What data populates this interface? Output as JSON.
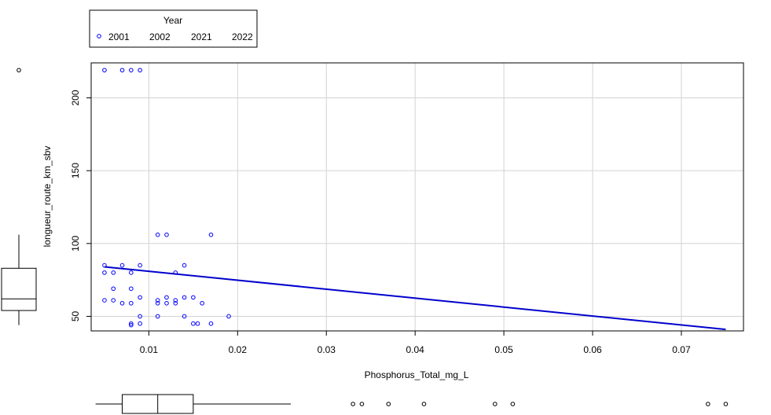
{
  "chart_data": {
    "type": "scatter",
    "xlabel": "Phosphorus_Total_mg_L",
    "ylabel": "longueur_route_km_sbv",
    "xlim": [
      0.0035,
      0.077
    ],
    "ylim": [
      40,
      224
    ],
    "x_ticks": [
      0.01,
      0.02,
      0.03,
      0.04,
      0.05,
      0.06,
      0.07
    ],
    "x_tick_labels": [
      "0.01",
      "0.02",
      "0.03",
      "0.04",
      "0.05",
      "0.06",
      "0.07"
    ],
    "y_ticks": [
      50,
      100,
      150,
      200
    ],
    "y_tick_labels": [
      "50",
      "100",
      "150",
      "200"
    ],
    "grid": true,
    "point_color": "#0000ff",
    "line_color": "#0000cd",
    "legend": {
      "title": "Year",
      "placement": "top-left",
      "entries": [
        "2001",
        "2002",
        "2021",
        "2022"
      ]
    },
    "series": [
      {
        "name": "2001",
        "points": [
          [
            0.005,
            219
          ],
          [
            0.007,
            219
          ],
          [
            0.008,
            219
          ],
          [
            0.009,
            219
          ],
          [
            0.005,
            85
          ],
          [
            0.007,
            85
          ],
          [
            0.009,
            85
          ],
          [
            0.014,
            85
          ],
          [
            0.005,
            80
          ],
          [
            0.006,
            80
          ],
          [
            0.008,
            80
          ],
          [
            0.013,
            80
          ],
          [
            0.006,
            69
          ],
          [
            0.008,
            69
          ],
          [
            0.009,
            63
          ],
          [
            0.012,
            63
          ],
          [
            0.014,
            63
          ],
          [
            0.015,
            63
          ],
          [
            0.005,
            61
          ],
          [
            0.006,
            61
          ],
          [
            0.011,
            61
          ],
          [
            0.013,
            61
          ],
          [
            0.007,
            59
          ],
          [
            0.008,
            59
          ],
          [
            0.011,
            59
          ],
          [
            0.012,
            59
          ],
          [
            0.013,
            59
          ],
          [
            0.016,
            59
          ],
          [
            0.009,
            50
          ],
          [
            0.011,
            50
          ],
          [
            0.014,
            50
          ],
          [
            0.019,
            50
          ],
          [
            0.008,
            45
          ],
          [
            0.008,
            44
          ],
          [
            0.009,
            45
          ],
          [
            0.015,
            45
          ],
          [
            0.0155,
            45
          ],
          [
            0.017,
            45
          ],
          [
            0.011,
            106
          ],
          [
            0.012,
            106
          ],
          [
            0.017,
            106
          ]
        ]
      }
    ],
    "regression_line": {
      "x": [
        0.005,
        0.075
      ],
      "y": [
        84,
        41
      ]
    },
    "x_boxplot": {
      "whisker_low": 0.004,
      "q1": 0.007,
      "median": 0.011,
      "q3": 0.015,
      "whisker_high": 0.026,
      "outliers": [
        0.033,
        0.034,
        0.037,
        0.041,
        0.049,
        0.051,
        0.073,
        0.075
      ]
    },
    "y_boxplot": {
      "whisker_low": 44,
      "q1": 54,
      "median": 62,
      "q3": 83,
      "whisker_high": 106,
      "outliers": [
        219
      ]
    }
  }
}
